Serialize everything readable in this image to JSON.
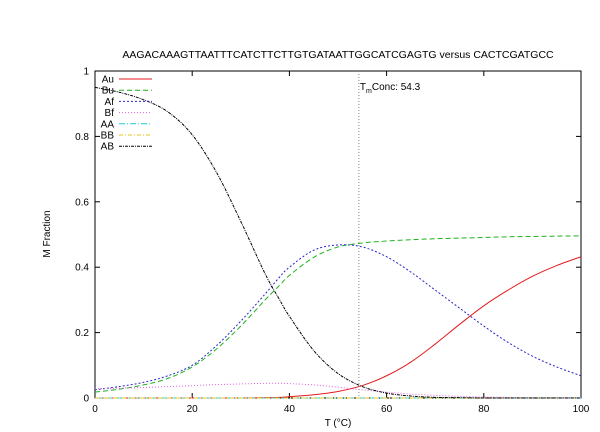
{
  "chart_data": {
    "type": "line",
    "title": "AAGACAAAGTTAATTTCATCTTCTTGTGATAATTGGCATCGAGTG versus CACTCGATGCC",
    "xlabel": "T (°C)",
    "ylabel": "M Fraction",
    "xlim": [
      0,
      100
    ],
    "ylim": [
      0,
      1
    ],
    "x_ticks": [
      0,
      20,
      40,
      60,
      80,
      100
    ],
    "y_ticks": [
      0,
      0.2,
      0.4,
      0.6,
      0.8,
      1
    ],
    "y_tick_labels": [
      "0",
      "0.2",
      "0.4",
      "0.6",
      "0.8",
      "1"
    ],
    "grid": false,
    "legend_position": "top-left",
    "annotation": {
      "x": 54.3,
      "label_main": "T",
      "label_sub": "m",
      "label_rest": "Conc: 54.3"
    },
    "x": [
      0,
      5,
      10,
      15,
      20,
      25,
      30,
      35,
      38,
      40,
      45,
      50,
      55,
      60,
      65,
      70,
      75,
      80,
      85,
      90,
      95,
      100
    ],
    "series": [
      {
        "name": "Au",
        "color": "#e41a1c",
        "dash": "",
        "values": [
          0,
          0,
          0,
          0,
          0,
          0,
          0,
          0.001,
          0.002,
          0.004,
          0.01,
          0.02,
          0.038,
          0.068,
          0.11,
          0.165,
          0.225,
          0.282,
          0.33,
          0.372,
          0.405,
          0.432
        ]
      },
      {
        "name": "Bu",
        "color": "#1db31d",
        "dash": "5,3",
        "values": [
          0.018,
          0.027,
          0.04,
          0.06,
          0.095,
          0.15,
          0.22,
          0.3,
          0.345,
          0.375,
          0.43,
          0.462,
          0.474,
          0.48,
          0.484,
          0.487,
          0.489,
          0.491,
          0.493,
          0.494,
          0.495,
          0.496
        ]
      },
      {
        "name": "Af",
        "color": "#2626c9",
        "dash": "2,2",
        "values": [
          0.025,
          0.035,
          0.048,
          0.068,
          0.1,
          0.16,
          0.235,
          0.318,
          0.37,
          0.4,
          0.452,
          0.468,
          0.462,
          0.432,
          0.385,
          0.33,
          0.275,
          0.22,
          0.17,
          0.128,
          0.095,
          0.068
        ]
      },
      {
        "name": "Bf",
        "color": "#e05ce0",
        "dash": "1,2",
        "values": [
          0.028,
          0.03,
          0.032,
          0.035,
          0.038,
          0.041,
          0.043,
          0.045,
          0.045,
          0.044,
          0.04,
          0.033,
          0.025,
          0.018,
          0.012,
          0.008,
          0.005,
          0.003,
          0.002,
          0.001,
          0.001,
          0.001
        ]
      },
      {
        "name": "AA",
        "color": "#22c9d9",
        "dash": "6,2,1,2",
        "values": [
          0,
          0,
          0,
          0,
          0,
          0,
          0,
          0,
          0,
          0,
          0,
          0,
          0,
          0,
          0,
          0,
          0,
          0,
          0,
          0,
          0,
          0
        ]
      },
      {
        "name": "BB",
        "color": "#e6c619",
        "dash": "4,2,1,2",
        "values": [
          0,
          0,
          0,
          0,
          0,
          0,
          0,
          0,
          0,
          0,
          0,
          0,
          0,
          0,
          0,
          0,
          0,
          0,
          0,
          0,
          0,
          0
        ]
      },
      {
        "name": "AB",
        "color": "#000000",
        "dash": "3,1,1,1",
        "values": [
          0.95,
          0.935,
          0.912,
          0.875,
          0.805,
          0.69,
          0.54,
          0.38,
          0.3,
          0.25,
          0.145,
          0.075,
          0.035,
          0.015,
          0.006,
          0.002,
          0.001,
          0,
          0,
          0,
          0,
          0
        ]
      }
    ]
  }
}
